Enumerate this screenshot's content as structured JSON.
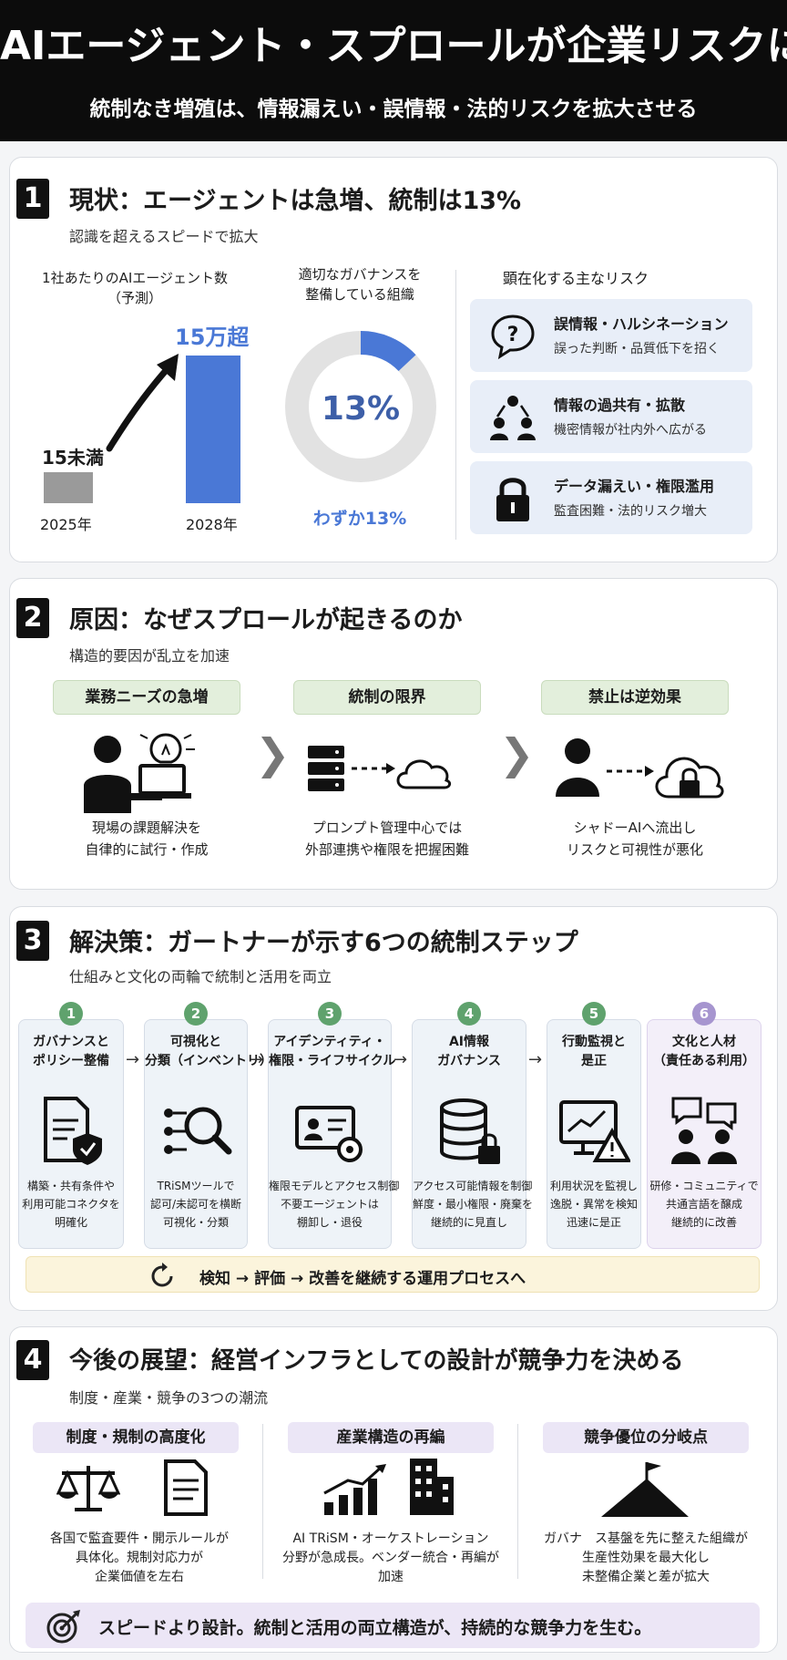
{
  "header": {
    "title": "AIエージェント・スプロールが企業リスクに",
    "subtitle": "統制なき増殖は、情報漏えい・誤情報・法的リスクを拡大させる"
  },
  "section1": {
    "number": "1",
    "title": "現状：エージェントは急増、統制は13%",
    "subtitle": "認識を超えるスピードで拡大",
    "bar_chart": {
      "label_line1": "1社あたりのAIエージェント数",
      "label_line2": "（予測）",
      "bars": [
        {
          "year": "2025年",
          "value_label": "15未満"
        },
        {
          "year": "2028年",
          "value_label": "15万超"
        }
      ]
    },
    "donut": {
      "label_line1": "適切なガバナンスを",
      "label_line2": "整備している組織",
      "center": "13%",
      "caption": "わずか13%",
      "percent": 13
    },
    "risks_title": "顕在化する主なリスク",
    "risks": [
      {
        "title": "誤情報・ハルシネーション",
        "desc": "誤った判断・品質低下を招く",
        "icon": "question-bubble-icon"
      },
      {
        "title": "情報の過共有・拡散",
        "desc": "機密情報が社内外へ広がる",
        "icon": "people-network-icon"
      },
      {
        "title": "データ漏えい・権限濫用",
        "desc": "監査困難・法的リスク増大",
        "icon": "lock-icon"
      }
    ]
  },
  "section2": {
    "number": "2",
    "title": "原因：なぜスプロールが起きるのか",
    "subtitle": "構造的要因が乱立を加速",
    "causes": [
      {
        "label": "業務ニーズの急増",
        "line1": "現場の課題解決を",
        "line2": "自律的に試行・作成"
      },
      {
        "label": "統制の限界",
        "line1": "プロンプト管理中心では",
        "line2": "外部連携や権限を把握困難"
      },
      {
        "label": "禁止は逆効果",
        "line1": "シャドーAIへ流出し",
        "line2": "リスクと可視性が悪化"
      }
    ]
  },
  "section3": {
    "number": "3",
    "title": "解決策：ガートナーが示す6つの統制ステップ",
    "subtitle": "仕組みと文化の両輪で統制と活用を両立",
    "steps": [
      {
        "n": "1",
        "t1": "ガバナンスと",
        "t2": "ポリシー整備",
        "d1": "構築・共有条件や",
        "d2": "利用可能コネクタを",
        "d3": "明確化"
      },
      {
        "n": "2",
        "t1": "可視化と",
        "t2": "分類（インベントリ）",
        "d1": "TRiSMツールで",
        "d2": "認可/未認可を横断",
        "d3": "可視化・分類"
      },
      {
        "n": "3",
        "t1": "アイデンティティ・",
        "t2": "権限・ライフサイクル",
        "d1": "権限モデルとアクセス制御",
        "d2": "不要エージェントは",
        "d3": "棚卸し・退役"
      },
      {
        "n": "4",
        "t1": "AI情報",
        "t2": "ガバナンス",
        "d1": "アクセス可能情報を制御",
        "d2": "鮮度・最小権限・廃棄を",
        "d3": "継続的に見直し"
      },
      {
        "n": "5",
        "t1": "行動監視と",
        "t2": "是正",
        "d1": "利用状況を監視し",
        "d2": "逸脱・異常を検知",
        "d3": "迅速に是正"
      },
      {
        "n": "6",
        "t1": "文化と人材",
        "t2": "（責任ある利用）",
        "d1": "研修・コミュニティで",
        "d2": "共通言語を醸成",
        "d3": "継続的に改善"
      }
    ],
    "flow": "検知 → 評価 → 改善を継続する運用プロセスへ"
  },
  "section4": {
    "number": "4",
    "title": "今後の展望：経営インフラとしての設計が競争力を決める",
    "subtitle": "制度・産業・競争の3つの潮流",
    "trends": [
      {
        "label": "制度・規制の高度化",
        "line1": "各国で監査要件・開示ルールが",
        "line2": "具体化。規制対応力が",
        "line3": "企業価値を左右"
      },
      {
        "label": "産業構造の再編",
        "line1": "AI TRiSM・オーケストレーション",
        "line2": "分野が急成長。ベンダー統合・再編が",
        "line3": "加速"
      },
      {
        "label": "競争優位の分岐点",
        "line1": "ガバナ　ス基盤を先に整えた組織が",
        "line2": "生産性効果を最大化し",
        "line3": "未整備企業と差が拡大"
      }
    ],
    "bottom": "スピードより設計。統制と活用の両立構造が、持続的な競争力を生む。"
  },
  "colors": {
    "accent_blue": "#4a78d6",
    "gray_bar": "#9a9a9a",
    "green_pill": "#e3efdc",
    "purple_pill": "#ebe6f6"
  }
}
